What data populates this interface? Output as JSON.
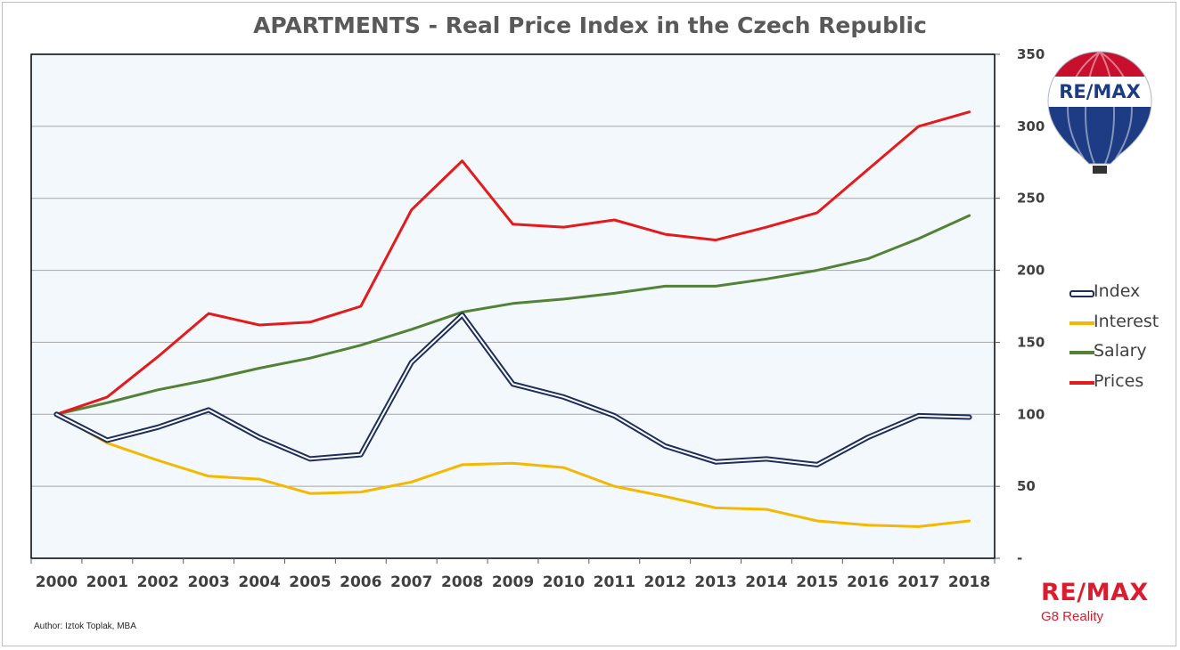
{
  "title": "APARTMENTS - Real Price Index in the Czech Republic",
  "author": "Author: Iztok Toplak, MBA",
  "brand": {
    "logo_text": "RE/MAX",
    "office": "G8 Reality",
    "balloon_text": "RE/MAX"
  },
  "colors": {
    "index": "#1f2d5a",
    "interest": "#f5b800",
    "salary": "#538135",
    "prices": "#e41a1c",
    "plot_bg": "#f3f8fc",
    "gridline": "#a6a6a6"
  },
  "chart_data": {
    "type": "line",
    "title": "APARTMENTS - Real Price Index in the Czech Republic",
    "x": [
      "2000",
      "2001",
      "2002",
      "2003",
      "2004",
      "2005",
      "2006",
      "2007",
      "2008",
      "2009",
      "2010",
      "2011",
      "2012",
      "2013",
      "2014",
      "2015",
      "2016",
      "2017",
      "2018"
    ],
    "ylim": [
      0,
      350
    ],
    "y_ticks": [
      0,
      50,
      100,
      150,
      200,
      250,
      300,
      350
    ],
    "y_tick_labels": [
      "-",
      "50",
      "100",
      "150",
      "200",
      "250",
      "300",
      "350"
    ],
    "y_axis_side": "right",
    "grid": true,
    "legend_position": "right",
    "series": [
      {
        "name": "Index",
        "color": "#1f2d5a",
        "values": [
          100,
          82,
          91,
          103,
          84,
          69,
          72,
          136,
          169,
          121,
          112,
          99,
          78,
          67,
          69,
          65,
          84,
          99,
          98
        ]
      },
      {
        "name": "Interest",
        "color": "#f5b800",
        "values": [
          100,
          80,
          68,
          57,
          55,
          45,
          46,
          53,
          65,
          66,
          63,
          50,
          43,
          35,
          34,
          26,
          23,
          22,
          26
        ]
      },
      {
        "name": "Salary",
        "color": "#538135",
        "values": [
          100,
          108,
          117,
          124,
          132,
          139,
          148,
          159,
          171,
          177,
          180,
          184,
          189,
          189,
          194,
          200,
          208,
          222,
          238
        ]
      },
      {
        "name": "Prices",
        "color": "#e41a1c",
        "values": [
          100,
          112,
          140,
          170,
          162,
          164,
          175,
          242,
          276,
          232,
          230,
          235,
          225,
          221,
          230,
          240,
          270,
          300,
          310
        ]
      }
    ]
  }
}
